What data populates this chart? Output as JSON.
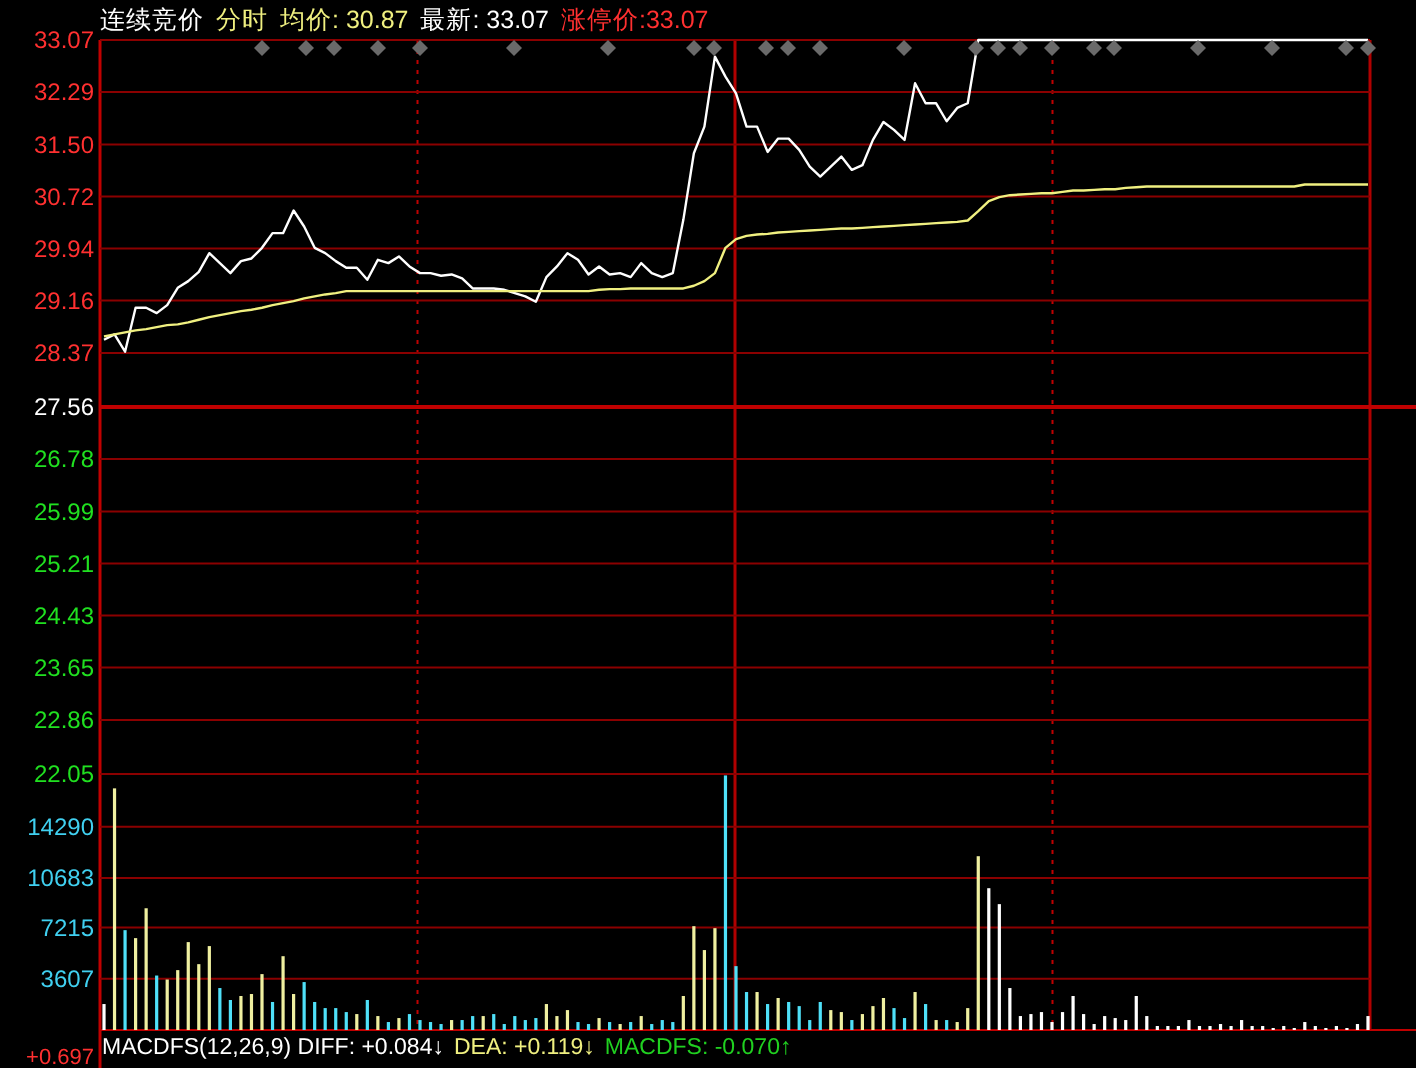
{
  "chart_data": [
    {
      "type": "line",
      "title": "连续竞价",
      "subtitle": "分时",
      "annotations": [
        "均价: 30.87",
        "最新: 33.07",
        "涨停价:33.07"
      ],
      "categories": [
        null,
        null,
        null,
        null,
        null,
        null,
        null,
        null,
        null,
        null,
        null,
        null,
        null,
        null,
        null,
        null,
        null,
        null,
        null,
        null,
        null,
        null,
        null,
        null,
        null,
        null,
        null,
        null,
        null,
        null,
        null,
        null,
        null,
        null,
        null,
        null,
        null,
        null,
        null,
        null,
        null,
        null,
        null,
        null,
        null,
        null,
        null,
        null,
        null,
        null,
        null,
        null,
        null,
        null,
        null,
        null,
        null,
        null,
        null,
        null,
        null,
        null,
        null,
        null,
        null,
        null,
        null,
        null,
        null,
        null,
        null,
        null,
        null,
        null,
        null,
        null,
        null,
        null,
        null,
        null,
        null,
        null,
        null,
        null,
        null,
        null,
        null,
        null,
        null,
        null,
        null,
        null,
        null,
        null,
        null,
        null,
        null,
        null,
        null,
        null,
        null,
        null,
        null,
        null,
        null,
        null,
        null,
        null,
        null,
        null,
        null,
        null,
        null,
        null,
        null,
        null,
        null,
        null,
        null,
        null,
        null
      ],
      "series": [
        {
          "color": "#ffffff",
          "values": [
            28.57,
            28.65,
            28.39,
            29.05,
            29.05,
            28.97,
            29.09,
            29.35,
            29.45,
            29.59,
            29.87,
            29.72,
            29.57,
            29.75,
            29.79,
            29.95,
            30.17,
            30.17,
            30.51,
            30.27,
            29.95,
            29.87,
            29.75,
            29.65,
            29.65,
            29.47,
            29.77,
            29.72,
            29.82,
            29.67,
            29.57,
            29.57,
            29.53,
            29.55,
            29.49,
            29.34,
            29.34,
            29.34,
            29.32,
            29.27,
            29.22,
            29.14,
            29.51,
            29.67,
            29.87,
            29.77,
            29.55,
            29.67,
            29.55,
            29.57,
            29.51,
            29.72,
            29.57,
            29.51,
            29.57,
            30.37,
            31.37,
            31.77,
            32.82,
            32.52,
            32.27,
            31.77,
            31.77,
            31.39,
            31.59,
            31.59,
            31.42,
            31.17,
            31.02,
            31.17,
            31.32,
            31.12,
            31.19,
            31.57,
            31.84,
            31.72,
            31.57,
            32.42,
            32.12,
            32.12,
            31.85,
            32.05,
            32.12,
            33.07,
            33.07,
            33.07,
            33.07,
            33.07,
            33.07,
            33.07,
            33.07,
            33.07,
            33.07,
            33.07,
            33.07,
            33.07,
            33.07,
            33.07,
            33.07,
            33.07,
            33.07,
            33.07,
            33.07,
            33.07,
            33.07,
            33.07,
            33.07,
            33.07,
            33.07,
            33.07,
            33.07,
            33.07,
            33.07,
            33.07,
            33.07,
            33.07,
            33.07,
            33.07,
            33.07,
            33.07,
            33.07
          ]
        },
        {
          "color": "#f0f080",
          "values": [
            28.62,
            28.65,
            28.68,
            28.71,
            28.73,
            28.76,
            28.79,
            28.8,
            28.83,
            28.87,
            28.91,
            28.94,
            28.97,
            29.0,
            29.02,
            29.05,
            29.09,
            29.12,
            29.15,
            29.19,
            29.22,
            29.25,
            29.27,
            29.3,
            29.3,
            29.3,
            29.3,
            29.3,
            29.3,
            29.3,
            29.3,
            29.3,
            29.3,
            29.3,
            29.3,
            29.3,
            29.3,
            29.3,
            29.3,
            29.3,
            29.3,
            29.3,
            29.3,
            29.3,
            29.3,
            29.3,
            29.3,
            29.32,
            29.33,
            29.33,
            29.34,
            29.34,
            29.34,
            29.34,
            29.34,
            29.34,
            29.38,
            29.45,
            29.57,
            29.95,
            30.08,
            30.13,
            30.15,
            30.16,
            30.18,
            30.19,
            30.2,
            30.21,
            30.22,
            30.23,
            30.24,
            30.24,
            30.25,
            30.26,
            30.27,
            30.28,
            30.29,
            30.3,
            30.31,
            30.32,
            30.33,
            30.34,
            30.36,
            30.5,
            30.65,
            30.71,
            30.74,
            30.75,
            30.76,
            30.77,
            30.77,
            30.79,
            30.81,
            30.81,
            30.82,
            30.83,
            30.83,
            30.85,
            30.86,
            30.87,
            30.87,
            30.87,
            30.87,
            30.87,
            30.87,
            30.87,
            30.87,
            30.87,
            30.87,
            30.87,
            30.87,
            30.87,
            30.87,
            30.87,
            30.9,
            30.9,
            30.9,
            30.9,
            30.9,
            30.9,
            30.9
          ]
        }
      ],
      "ylim": [
        22.05,
        33.07
      ],
      "yticks": [
        33.07,
        32.29,
        {
          "value": 31.5,
          "label": "31.50"
        },
        30.72,
        29.94,
        29.16,
        28.37,
        27.56,
        26.78,
        25.99,
        25.21,
        24.43,
        23.65,
        22.86,
        22.05
      ],
      "grid": "y",
      "tick_labels": "y",
      "ref_lines": [
        {
          "axis": "y",
          "value": 27.56,
          "color": "#c00000"
        }
      ]
    },
    {
      "type": "bar",
      "annotations": [
        "MACDFS(12,26,9) DIFF: +0.084↓",
        "DEA: +0.119↓",
        "MACDFS: -0.070↑",
        "+0.697"
      ],
      "categories": [
        null,
        null,
        null,
        null,
        null,
        null,
        null,
        null,
        null,
        null,
        null,
        null,
        null,
        null,
        null,
        null,
        null,
        null,
        null,
        null,
        null,
        null,
        null,
        null,
        null,
        null,
        null,
        null,
        null,
        null,
        null,
        null,
        null,
        null,
        null,
        null,
        null,
        null,
        null,
        null,
        null,
        null,
        null,
        null,
        null,
        null,
        null,
        null,
        null,
        null,
        null,
        null,
        null,
        null,
        null,
        null,
        null,
        null,
        null,
        null,
        null,
        null,
        null,
        null,
        null,
        null,
        null,
        null,
        null,
        null,
        null,
        null,
        null,
        null,
        null,
        null,
        null,
        null,
        null,
        null,
        null,
        null,
        null,
        null,
        null,
        null,
        null,
        null,
        null,
        null,
        null,
        null,
        null,
        null,
        null,
        null,
        null,
        null,
        null,
        null,
        null,
        null,
        null,
        null,
        null,
        null,
        null,
        null,
        null,
        null,
        null,
        null,
        null,
        null,
        null,
        null,
        null,
        null,
        null,
        null,
        null
      ],
      "values": [
        1825,
        16990,
        7020,
        6460,
        8560,
        3830,
        3550,
        4210,
        6180,
        4630,
        5900,
        2950,
        2110,
        2390,
        2530,
        3930,
        1970,
        5190,
        2530,
        3370,
        1970,
        1540,
        1540,
        1260,
        1120,
        2110,
        980,
        560,
        840,
        1120,
        700,
        560,
        420,
        700,
        700,
        980,
        980,
        1120,
        420,
        980,
        700,
        840,
        1825,
        980,
        1400,
        560,
        420,
        840,
        560,
        420,
        560,
        980,
        420,
        700,
        560,
        2390,
        7300,
        5620,
        7160,
        17900,
        4490,
        2670,
        2670,
        1825,
        2250,
        1970,
        1680,
        700,
        1970,
        1400,
        1260,
        700,
        1120,
        1680,
        2250,
        1540,
        840,
        2670,
        1825,
        700,
        700,
        560,
        1540,
        12220,
        9970,
        8850,
        2950,
        980,
        1120,
        1260,
        560,
        1260,
        2390,
        1120,
        420,
        980,
        840,
        700,
        2390,
        980,
        280,
        280,
        280,
        700,
        280,
        280,
        420,
        280,
        700,
        280,
        280,
        140,
        280,
        140,
        560,
        280,
        140,
        280,
        140,
        420,
        980
      ],
      "colors": [
        "#ffffff",
        "#f0f0a0",
        "#4fe0f8",
        "#f0f0a0",
        "#f0f0a0",
        "#4fe0f8",
        "#f0f0a0",
        "#f0f0a0",
        "#f0f0a0",
        "#f0f0a0",
        "#f0f0a0",
        "#4fe0f8",
        "#4fe0f8",
        "#f0f0a0",
        "#f0f0a0",
        "#f0f0a0",
        "#4fe0f8",
        "#f0f0a0",
        "#f0f0a0",
        "#4fe0f8",
        "#4fe0f8",
        "#4fe0f8",
        "#4fe0f8",
        "#4fe0f8",
        "#f0f0a0",
        "#4fe0f8",
        "#f0f0a0",
        "#4fe0f8",
        "#f0f0a0",
        "#4fe0f8",
        "#4fe0f8",
        "#4fe0f8",
        "#4fe0f8",
        "#f0f0a0",
        "#4fe0f8",
        "#4fe0f8",
        "#f0f0a0",
        "#4fe0f8",
        "#4fe0f8",
        "#4fe0f8",
        "#4fe0f8",
        "#4fe0f8",
        "#f0f0a0",
        "#f0f0a0",
        "#f0f0a0",
        "#4fe0f8",
        "#4fe0f8",
        "#f0f0a0",
        "#4fe0f8",
        "#f0f0a0",
        "#4fe0f8",
        "#f0f0a0",
        "#4fe0f8",
        "#4fe0f8",
        "#4fe0f8",
        "#f0f0a0",
        "#f0f0a0",
        "#f0f0a0",
        "#f0f0a0",
        "#4fe0f8",
        "#4fe0f8",
        "#4fe0f8",
        "#f0f0a0",
        "#4fe0f8",
        "#f0f0a0",
        "#4fe0f8",
        "#4fe0f8",
        "#4fe0f8",
        "#4fe0f8",
        "#f0f0a0",
        "#f0f0a0",
        "#4fe0f8",
        "#f0f0a0",
        "#f0f0a0",
        "#f0f0a0",
        "#4fe0f8",
        "#4fe0f8",
        "#f0f0a0",
        "#4fe0f8",
        "#f0f0a0",
        "#4fe0f8",
        "#f0f0a0",
        "#f0f0a0",
        "#f0f0a0",
        "#ffffff",
        "#ffffff",
        "#ffffff",
        "#ffffff",
        "#ffffff",
        "#ffffff",
        "#ffffff",
        "#ffffff",
        "#ffffff",
        "#ffffff",
        "#ffffff",
        "#ffffff",
        "#ffffff",
        "#ffffff",
        "#ffffff",
        "#ffffff",
        "#ffffff",
        "#ffffff",
        "#ffffff",
        "#ffffff",
        "#ffffff",
        "#ffffff",
        "#ffffff",
        "#ffffff",
        "#ffffff",
        "#ffffff",
        "#ffffff",
        "#ffffff",
        "#ffffff",
        "#ffffff",
        "#ffffff",
        "#ffffff",
        "#ffffff",
        "#ffffff",
        "#ffffff",
        "#ffffff",
        "#ffffff"
      ],
      "ylim": [
        0,
        18000
      ],
      "yticks": [
        3607,
        7215,
        10683,
        14290
      ],
      "grid": "y",
      "tick_labels": "y"
    }
  ]
}
